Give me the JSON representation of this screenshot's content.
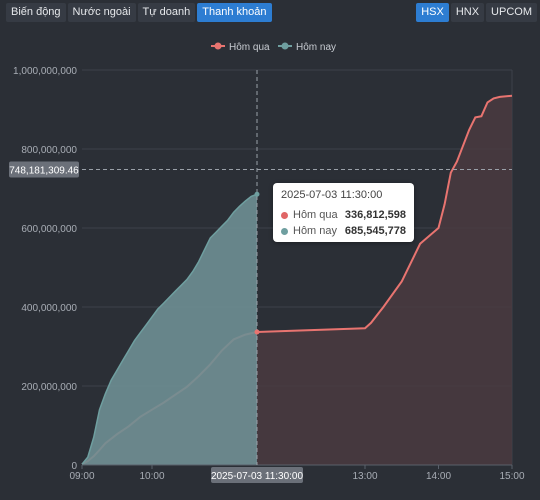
{
  "tabs_left": [
    {
      "label": "Biến động",
      "active": false
    },
    {
      "label": "Nước ngoài",
      "active": false
    },
    {
      "label": "Tự doanh",
      "active": false
    },
    {
      "label": "Thanh khoản",
      "active": true
    }
  ],
  "tabs_right": [
    {
      "label": "HSX",
      "active": true
    },
    {
      "label": "HNX",
      "active": false
    },
    {
      "label": "UPCOM",
      "active": false
    }
  ],
  "tooltip": {
    "time": "2025-07-03 11:30:00",
    "rows": [
      {
        "name": "Hôm qua",
        "value": "336,812,598",
        "color": "#e06666"
      },
      {
        "name": "Hôm nay",
        "value": "685,545,778",
        "color": "#6f9fa0"
      }
    ]
  },
  "crosshair": {
    "y_value": 748181309.46,
    "y_label": "748,181,309.46",
    "x_value": "11:30",
    "x_label": "2025-07-03 11:30:00"
  },
  "colors": {
    "yesterday_line": "#e87470",
    "yesterday_fill": "#4a3a40",
    "today_line": "#6f9fa0",
    "today_fill": "#6e8f94",
    "grid": "#3d424b",
    "axis_text": "#a8adb5"
  },
  "chart_data": {
    "type": "area",
    "legend_position": "top-center",
    "xlabel": "",
    "ylabel": "",
    "ylim": [
      0,
      1000000000
    ],
    "y_ticks": [
      0,
      200000000,
      400000000,
      600000000,
      800000000,
      1000000000
    ],
    "y_tick_labels": [
      "0",
      "200,000,000",
      "400,000,000",
      "600,000,000",
      "800,000,000",
      "1,000,000,000"
    ],
    "x_range": [
      "09:00",
      "15:00"
    ],
    "x_ticks": [
      "09:00",
      "10:00",
      "13:00",
      "14:00",
      "15:00"
    ],
    "grid": true,
    "series": [
      {
        "name": "Hôm qua",
        "x": [
          "09:00",
          "09:05",
          "09:10",
          "09:15",
          "09:20",
          "09:30",
          "09:40",
          "09:50",
          "10:00",
          "10:10",
          "10:20",
          "10:30",
          "10:40",
          "10:50",
          "11:00",
          "11:10",
          "11:20",
          "11:30",
          "13:00",
          "13:05",
          "13:15",
          "13:30",
          "13:45",
          "14:00",
          "14:05",
          "14:10",
          "14:15",
          "14:20",
          "14:25",
          "14:30",
          "14:35",
          "14:40",
          "14:45",
          "14:50",
          "15:00"
        ],
        "values": [
          2000000,
          10000000,
          22000000,
          38000000,
          55000000,
          78000000,
          98000000,
          122000000,
          140000000,
          158000000,
          178000000,
          198000000,
          225000000,
          255000000,
          290000000,
          318000000,
          330000000,
          336812598,
          346000000,
          360000000,
          400000000,
          465000000,
          560000000,
          600000000,
          660000000,
          740000000,
          768000000,
          808000000,
          848000000,
          880000000,
          883000000,
          918000000,
          928000000,
          932000000,
          935000000
        ]
      },
      {
        "name": "Hôm nay",
        "x": [
          "09:00",
          "09:05",
          "09:10",
          "09:15",
          "09:20",
          "09:25",
          "09:30",
          "09:35",
          "09:40",
          "09:45",
          "09:50",
          "09:55",
          "10:00",
          "10:05",
          "10:10",
          "10:15",
          "10:20",
          "10:25",
          "10:30",
          "10:35",
          "10:40",
          "10:45",
          "10:50",
          "10:55",
          "11:00",
          "11:05",
          "11:10",
          "11:15",
          "11:20",
          "11:25",
          "11:30"
        ],
        "values": [
          2000000,
          20000000,
          70000000,
          140000000,
          180000000,
          215000000,
          240000000,
          265000000,
          290000000,
          315000000,
          335000000,
          355000000,
          375000000,
          395000000,
          410000000,
          425000000,
          440000000,
          455000000,
          470000000,
          490000000,
          515000000,
          545000000,
          575000000,
          590000000,
          605000000,
          620000000,
          640000000,
          655000000,
          668000000,
          680000000,
          685545778
        ]
      }
    ]
  }
}
